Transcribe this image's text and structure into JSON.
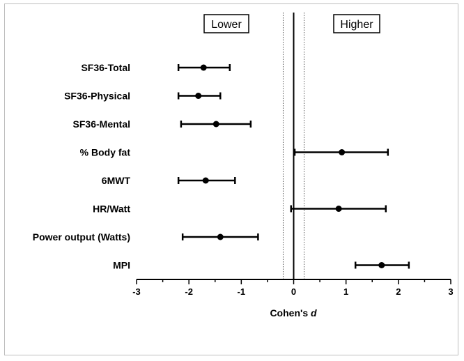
{
  "chart_data": {
    "type": "forest",
    "xlabel": "Cohen's",
    "xlabel_symbol": "d",
    "xlim": [
      -3,
      3
    ],
    "xticks": [
      "-3",
      "-2",
      "-1",
      "0",
      "1",
      "2",
      "3"
    ],
    "reference_lines": [
      {
        "x": 0,
        "style": "solid"
      },
      {
        "x": -0.2,
        "style": "dotted"
      },
      {
        "x": 0.2,
        "style": "dotted"
      }
    ],
    "annotations": [
      {
        "text": "Lower",
        "near_x": -1.2
      },
      {
        "text": "Higher",
        "near_x": 1.2
      }
    ],
    "rows": [
      {
        "label": "SF36-Total",
        "d": -1.72,
        "lo": -2.2,
        "hi": -1.22
      },
      {
        "label": "SF36-Physical",
        "d": -1.82,
        "lo": -2.2,
        "hi": -1.4
      },
      {
        "label": "SF36-Mental",
        "d": -1.48,
        "lo": -2.15,
        "hi": -0.82
      },
      {
        "label": "% Body fat",
        "d": 0.92,
        "lo": 0.02,
        "hi": 1.8
      },
      {
        "label": "6MWT",
        "d": -1.68,
        "lo": -2.2,
        "hi": -1.12
      },
      {
        "label": "HR/Watt",
        "d": 0.86,
        "lo": -0.05,
        "hi": 1.76
      },
      {
        "label": "Power output (Watts)",
        "d": -1.4,
        "lo": -2.12,
        "hi": -0.68
      },
      {
        "label": "MPI",
        "d": 1.68,
        "lo": 1.18,
        "hi": 2.2
      }
    ]
  }
}
